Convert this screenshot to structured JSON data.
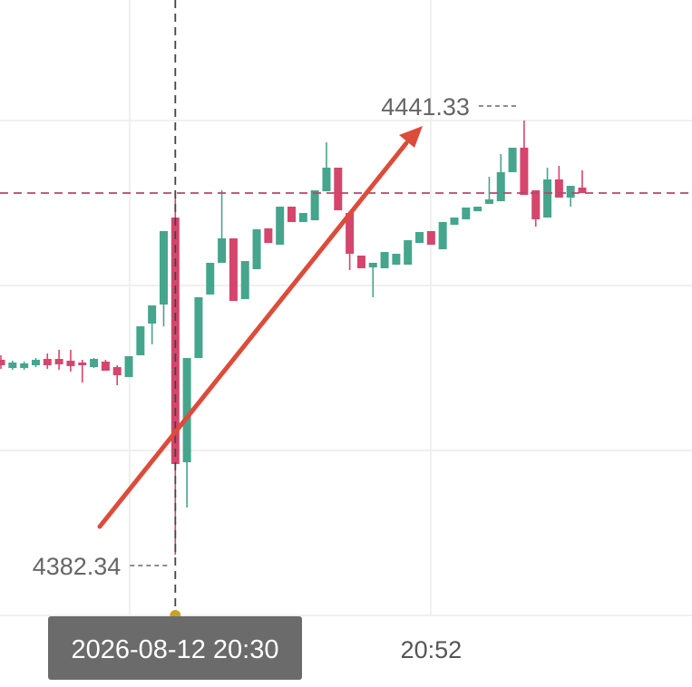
{
  "chart_data": {
    "type": "candlestick",
    "categories": [
      null,
      null,
      null,
      null,
      null,
      null,
      null,
      null,
      null,
      null,
      null,
      null,
      null,
      null,
      null,
      "2026-08-12 20:30",
      null,
      null,
      null,
      null,
      null,
      null,
      null,
      null,
      null,
      null,
      null,
      null,
      null,
      null,
      null,
      null,
      null,
      null,
      null,
      null,
      null,
      "20:52",
      null,
      null,
      null,
      null,
      null,
      null,
      null,
      null,
      null,
      null,
      null,
      null,
      null
    ],
    "open": [
      4408.82,
      4407.71,
      4407.71,
      4408.08,
      4408.94,
      4408.94,
      4408.7,
      4408.45,
      4407.83,
      4408.57,
      4407.83,
      4406.48,
      4409.43,
      4413.74,
      4416.33,
      4428.15,
      4394.9,
      4409.06,
      4417.69,
      4422.0,
      4425.32,
      4417.07,
      4421.13,
      4426.68,
      4424.46,
      4429.63,
      4427.54,
      4427.78,
      4431.72,
      4434.93,
      4428.77,
      4422.98,
      4421.38,
      4421.26,
      4421.75,
      4421.75,
      4424.7,
      4426.31,
      4423.84,
      4427.17,
      4427.91,
      4429.01,
      4430.0,
      4430.37,
      4434.31,
      4437.64,
      4431.85,
      4428.15,
      4433.33,
      4430.86,
      4432.22
    ],
    "high": [
      4409.43,
      4408.7,
      4408.57,
      4409.06,
      4409.68,
      4410.17,
      4410.17,
      4408.82,
      4409.06,
      4408.82,
      4408.08,
      4409.31,
      4413.37,
      4416.21,
      4426.31,
      4431.23,
      4409.06,
      4417.32,
      4422.0,
      4431.85,
      4425.32,
      4422.24,
      4426.55,
      4426.68,
      4429.63,
      4429.63,
      4428.77,
      4431.85,
      4438.37,
      4434.93,
      4428.77,
      4422.98,
      4422.0,
      4423.47,
      4423.23,
      4425.07,
      4426.18,
      4426.31,
      4427.54,
      4428.15,
      4429.51,
      4429.63,
      4433.69,
      4436.77,
      4437.64,
      4441.33,
      4431.85,
      4434.93,
      4435.17,
      4432.46,
      4434.56
    ],
    "low": [
      4407.59,
      4407.46,
      4407.46,
      4407.83,
      4407.59,
      4407.46,
      4407.22,
      4405.74,
      4407.71,
      4407.34,
      4405.37,
      4406.48,
      4409.43,
      4410.91,
      4413.37,
      4382.34,
      4388.74,
      4409.06,
      4417.69,
      4422.0,
      4416.82,
      4417.07,
      4421.13,
      4424.7,
      4424.46,
      4427.54,
      4427.54,
      4427.78,
      4431.72,
      4429.14,
      4421.01,
      4421.26,
      4417.32,
      4421.26,
      4421.75,
      4421.75,
      4424.7,
      4424.46,
      4423.84,
      4427.17,
      4427.91,
      4429.01,
      4430.0,
      4430.37,
      4434.31,
      4431.23,
      4426.92,
      4428.15,
      4430.86,
      4429.63,
      4431.48
    ],
    "close": [
      4408.08,
      4408.45,
      4408.33,
      4408.82,
      4408.08,
      4408.2,
      4407.96,
      4408.08,
      4408.94,
      4407.34,
      4406.72,
      4409.31,
      4413.37,
      4416.21,
      4426.31,
      4394.66,
      4409.06,
      4417.32,
      4422.0,
      4425.32,
      4416.82,
      4422.24,
      4426.55,
      4424.7,
      4429.63,
      4427.54,
      4428.77,
      4431.85,
      4434.93,
      4429.14,
      4423.23,
      4421.26,
      4422.0,
      4423.47,
      4423.23,
      4425.07,
      4426.18,
      4424.46,
      4427.54,
      4428.15,
      4429.51,
      4429.63,
      4430.62,
      4434.31,
      4437.64,
      4431.23,
      4427.91,
      4433.33,
      4430.86,
      4432.46,
      4431.48
    ],
    "up_color": "#45a58d",
    "down_color": "#d6456c",
    "ylim": [
      4374.09,
      4457.71
    ],
    "crosshair": 15,
    "last_price_line": true
  }
}
